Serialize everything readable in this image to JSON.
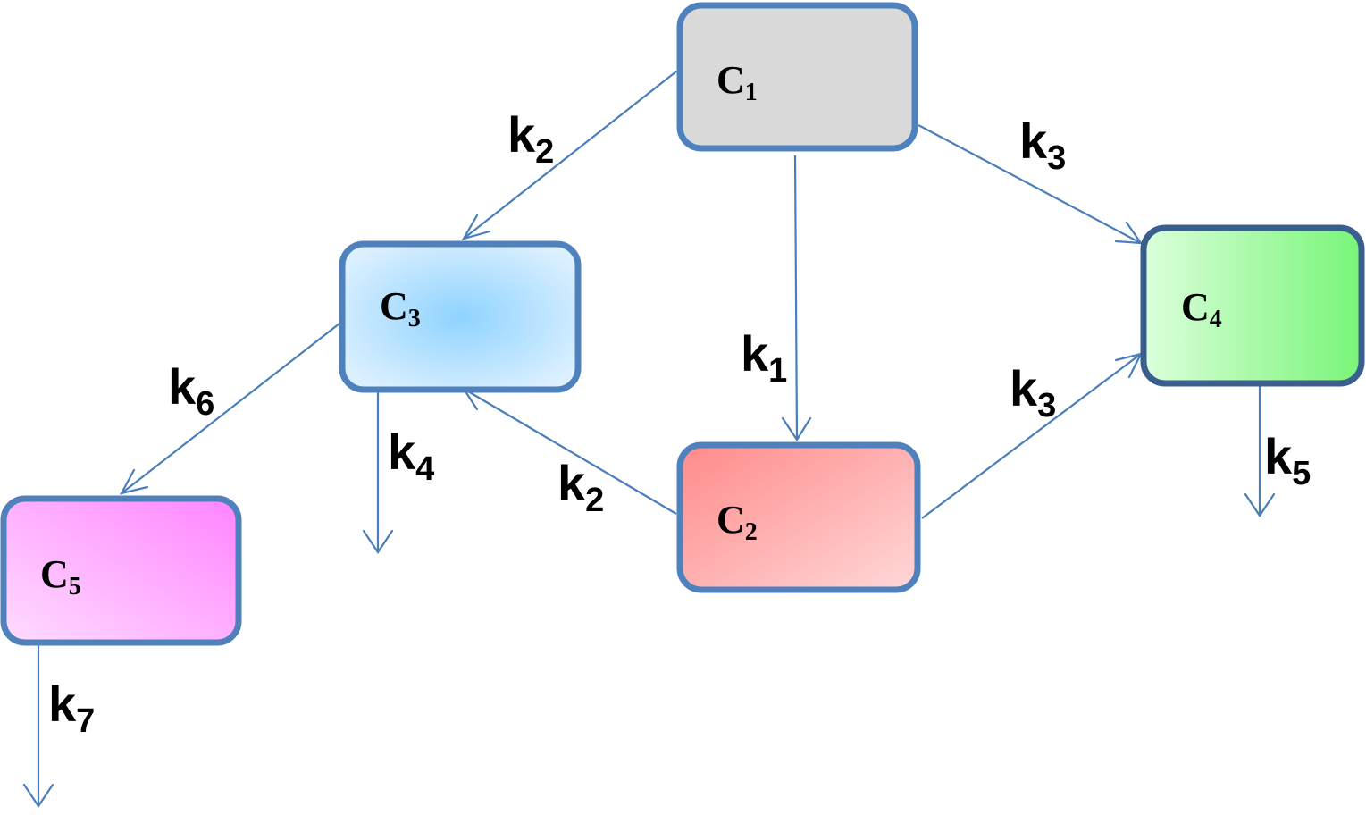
{
  "compartments": [
    {
      "id": "c1",
      "main": "C",
      "sub": "1"
    },
    {
      "id": "c2",
      "main": "C",
      "sub": "2"
    },
    {
      "id": "c3",
      "main": "C",
      "sub": "3"
    },
    {
      "id": "c4",
      "main": "C",
      "sub": "4"
    },
    {
      "id": "c5",
      "main": "C",
      "sub": "5"
    }
  ],
  "transitions": [
    {
      "from": "C1",
      "to": "C2",
      "main": "k",
      "sub": "1"
    },
    {
      "from": "C1",
      "to": "C3",
      "main": "k",
      "sub": "2"
    },
    {
      "from": "C2",
      "to": "C3",
      "main": "k",
      "sub": "2"
    },
    {
      "from": "C1",
      "to": "C4",
      "main": "k",
      "sub": "3"
    },
    {
      "from": "C2",
      "to": "C4",
      "main": "k",
      "sub": "3"
    },
    {
      "from": "C3",
      "to": "out",
      "main": "k",
      "sub": "4"
    },
    {
      "from": "C4",
      "to": "out",
      "main": "k",
      "sub": "5"
    },
    {
      "from": "C3",
      "to": "C5",
      "main": "k",
      "sub": "6"
    },
    {
      "from": "C5",
      "to": "out",
      "main": "k",
      "sub": "7"
    }
  ],
  "colors": {
    "edge": "#4a7ebb",
    "c1_fill": "#d9d9d9",
    "c2_fill_start": "#ff8a8a",
    "c2_fill_end": "#ffd6d6",
    "c3_fill_center": "#8fd3ff",
    "c3_fill_edge": "#d8efff",
    "c4_fill_start": "#d8ffd8",
    "c4_fill_end": "#7cf57c",
    "c5_fill_start": "#ffd6ff",
    "c5_fill_end": "#ff88ff",
    "border": "#4f81bd",
    "border_c4": "#3a5f8f"
  }
}
